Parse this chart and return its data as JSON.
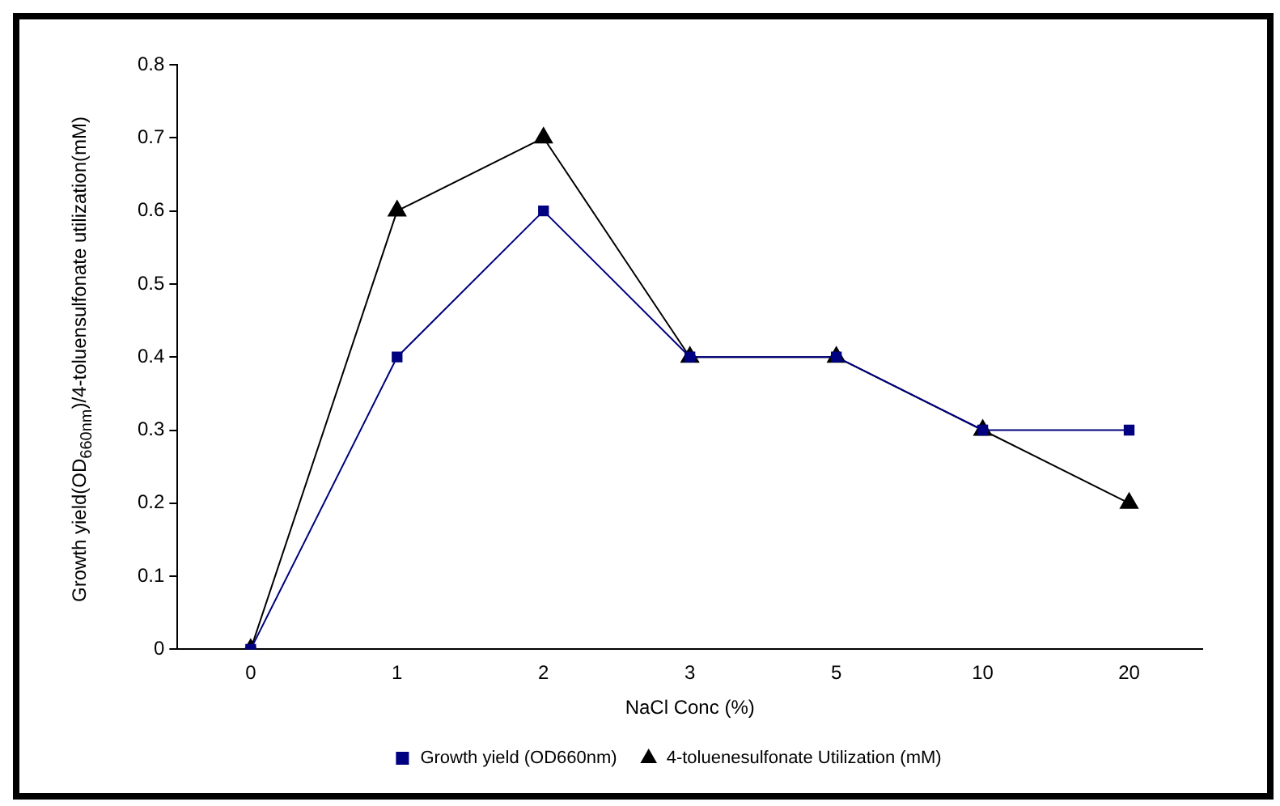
{
  "chart_data": {
    "type": "line",
    "xlabel": "NaCl Conc (%)",
    "ylabel": "Growth yield(OD$_{660nm}$)/4-toluensulfonate utilization(mM)",
    "categories": [
      "0",
      "1",
      "2",
      "3",
      "5",
      "10",
      "20"
    ],
    "series": [
      {
        "name": "Growth yield (OD660nm)",
        "color": "#000080",
        "marker": "square",
        "values": [
          0,
          0.4,
          0.6,
          0.4,
          0.4,
          0.3,
          0.3
        ]
      },
      {
        "name": "4-toluenesulfonate Utilization (mM)",
        "color": "#000000",
        "marker": "triangle",
        "values": [
          0,
          0.6,
          0.7,
          0.4,
          0.4,
          0.3,
          0.2
        ]
      }
    ],
    "ylim": [
      0,
      0.8
    ],
    "yticks": [
      0,
      0.1,
      0.2,
      0.3,
      0.4,
      0.5,
      0.6,
      0.7,
      0.8
    ],
    "grid": false,
    "legend": "bottom",
    "line_style": "solid"
  }
}
